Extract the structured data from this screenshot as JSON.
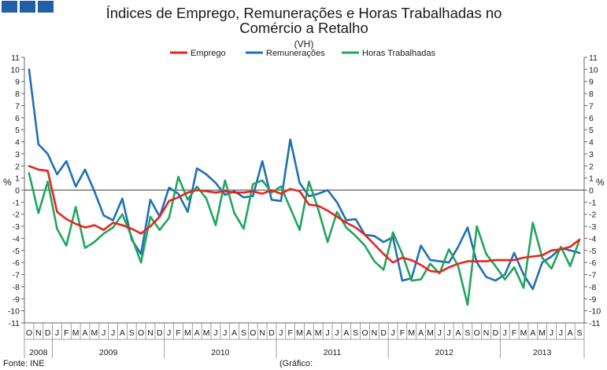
{
  "chart_data": {
    "type": "line",
    "title_line1": "Índices de Emprego, Remunerações e Horas Trabalhadas no",
    "title_line2": "Comércio a Retalho",
    "subtitle": "(VH)",
    "ylabel_left": "%",
    "ylabel_right": "%",
    "ylim": [
      -11,
      11
    ],
    "yticks": [
      11,
      10,
      9,
      8,
      7,
      6,
      5,
      4,
      3,
      2,
      1,
      0,
      -1,
      -2,
      -3,
      -4,
      -5,
      -6,
      -7,
      -8,
      -9,
      -10,
      -11
    ],
    "month_labels": [
      "O",
      "N",
      "D",
      "J",
      "F",
      "M",
      "A",
      "M",
      "J",
      "J",
      "A",
      "S",
      "O",
      "N",
      "D",
      "J",
      "F",
      "M",
      "A",
      "M",
      "J",
      "J",
      "A",
      "S",
      "O",
      "N",
      "D",
      "J",
      "F",
      "M",
      "A",
      "M",
      "J",
      "J",
      "A",
      "S",
      "O",
      "N",
      "D",
      "J",
      "F",
      "M",
      "A",
      "M",
      "J",
      "J",
      "A",
      "S",
      "O",
      "N",
      "D",
      "J",
      "F",
      "M",
      "A",
      "M",
      "J",
      "J",
      "A",
      "S"
    ],
    "years": [
      {
        "label": "2008",
        "start": 0,
        "end": 3
      },
      {
        "label": "2009",
        "start": 3,
        "end": 15
      },
      {
        "label": "2010",
        "start": 15,
        "end": 27
      },
      {
        "label": "2011",
        "start": 27,
        "end": 39
      },
      {
        "label": "2012",
        "start": 39,
        "end": 51
      },
      {
        "label": "2013",
        "start": 51,
        "end": 60
      }
    ],
    "series": [
      {
        "name": "Emprego",
        "color": "#e8231f",
        "values": [
          2.0,
          1.7,
          1.6,
          -1.8,
          -2.4,
          -2.8,
          -3.1,
          -2.9,
          -3.3,
          -2.7,
          -2.9,
          -3.2,
          -3.6,
          -3.0,
          -2.2,
          -0.9,
          -0.6,
          -0.2,
          0.0,
          -0.1,
          -0.2,
          -0.1,
          -0.2,
          -0.2,
          -0.1,
          -0.3,
          0.0,
          -0.3,
          0.1,
          -0.1,
          -1.2,
          -1.3,
          -1.7,
          -2.2,
          -2.7,
          -3.1,
          -3.7,
          -4.5,
          -5.3,
          -6.0,
          -5.6,
          -5.8,
          -6.2,
          -6.7,
          -6.8,
          -6.4,
          -6.1,
          -5.9,
          -5.9,
          -5.9,
          -5.8,
          -5.8,
          -5.8,
          -5.6,
          -5.5,
          -5.4,
          -5.0,
          -4.9,
          -4.7,
          -4.1
        ]
      },
      {
        "name": "Remunerações",
        "color": "#1f6fb5",
        "values": [
          10.0,
          3.8,
          3.0,
          1.3,
          2.4,
          0.3,
          1.7,
          -0.1,
          -2.1,
          -2.5,
          -0.7,
          -4.1,
          -5.3,
          -0.8,
          -2.2,
          0.2,
          -0.3,
          -1.8,
          1.8,
          1.3,
          0.6,
          -0.4,
          -0.1,
          -0.6,
          -0.5,
          2.4,
          -0.8,
          -0.9,
          4.2,
          0.6,
          -0.5,
          -0.3,
          0.0,
          -1.0,
          -2.5,
          -2.4,
          -3.7,
          -3.8,
          -4.3,
          -3.9,
          -7.5,
          -7.3,
          -4.6,
          -5.8,
          -5.9,
          -6.0,
          -4.7,
          -3.1,
          -6.0,
          -7.2,
          -7.5,
          -7.0,
          -5.2,
          -7.0,
          -8.2,
          -6.0,
          -5.5,
          -4.8,
          -5.0,
          -5.2
        ]
      },
      {
        "name": "Horas Trabalhadas",
        "color": "#22a55b",
        "values": [
          1.4,
          -1.9,
          0.7,
          -3.2,
          -4.6,
          -1.4,
          -4.8,
          -4.3,
          -3.6,
          -3.1,
          -2.0,
          -3.9,
          -6.0,
          -2.2,
          -3.3,
          -2.3,
          1.1,
          -0.8,
          0.3,
          -0.7,
          -2.9,
          0.8,
          -1.9,
          -3.2,
          0.5,
          0.8,
          -0.2,
          0.3,
          -1.5,
          -3.3,
          0.7,
          -1.6,
          -4.3,
          -1.8,
          -3.1,
          -3.8,
          -4.6,
          -5.9,
          -6.6,
          -3.5,
          -5.3,
          -7.5,
          -7.4,
          -6.1,
          -6.9,
          -4.9,
          -6.3,
          -9.5,
          -3.0,
          -5.3,
          -6.3,
          -7.4,
          -6.4,
          -8.1,
          -2.7,
          -5.6,
          -6.5,
          -4.7,
          -6.3,
          -4.1
        ]
      }
    ],
    "legend_position": "top-center",
    "source": "Fonte: INE",
    "source_note": "(Gráfico:",
    "grid": false
  },
  "decor": {
    "corner_blocks": 3,
    "corner_color": "#1f5fa8"
  }
}
